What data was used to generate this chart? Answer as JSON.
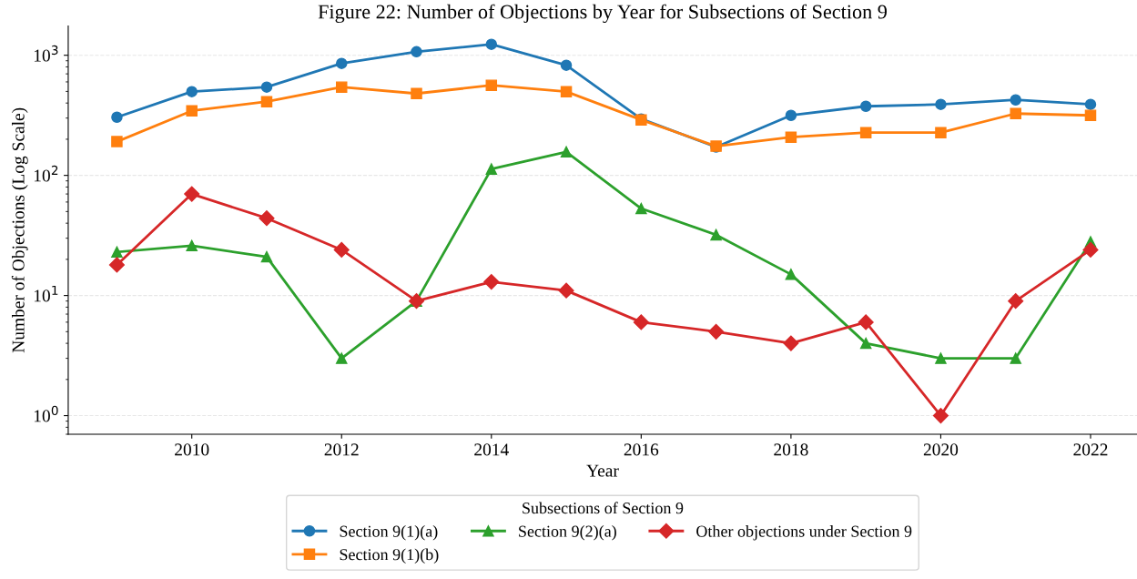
{
  "chart_data": {
    "type": "line",
    "title": "Figure 22: Number of Objections by Year for Subsections of Section 9",
    "xlabel": "Year",
    "ylabel": "Number of Objections (Log Scale)",
    "legend_title": "Subsections of Section 9",
    "x": [
      2009,
      2010,
      2011,
      2012,
      2013,
      2014,
      2015,
      2016,
      2017,
      2018,
      2019,
      2020,
      2021,
      2022
    ],
    "series": [
      {
        "name": "Section 9(1)(a)",
        "color": "#1f77b4",
        "marker": "circle",
        "values": [
          305,
          498,
          543,
          855,
          1070,
          1233,
          826,
          295,
          172,
          316,
          376,
          390,
          425,
          390
        ]
      },
      {
        "name": "Section 9(1)(b)",
        "color": "#ff7f0e",
        "marker": "square",
        "values": [
          191,
          345,
          411,
          543,
          480,
          562,
          498,
          290,
          175,
          208,
          227,
          227,
          327,
          316
        ]
      },
      {
        "name": "Section 9(2)(a)",
        "color": "#2ca02c",
        "marker": "triangle",
        "values": [
          23,
          26,
          21,
          3,
          9,
          113,
          157,
          53,
          32,
          15,
          4,
          3,
          3,
          28
        ]
      },
      {
        "name": "Other objections under Section 9",
        "color": "#d62728",
        "marker": "diamond",
        "values": [
          18,
          70,
          44,
          24,
          9,
          13,
          11,
          6,
          5,
          4,
          6,
          1,
          9,
          24
        ]
      }
    ],
    "log": "y",
    "xlim": [
      2008.35,
      2022.62
    ],
    "ylim": [
      0.7,
      1750
    ],
    "xticks": [
      2010,
      2012,
      2014,
      2016,
      2018,
      2020,
      2022
    ],
    "yticks": [
      {
        "value": 1,
        "label": "10$^{0}$"
      },
      {
        "value": 10,
        "label": "10$^{1}$"
      },
      {
        "value": 100,
        "label": "10$^{2}$"
      },
      {
        "value": 1000,
        "label": "10$^{3}$"
      }
    ],
    "grid": "y",
    "legend": "bottom",
    "line_style": "solid"
  }
}
